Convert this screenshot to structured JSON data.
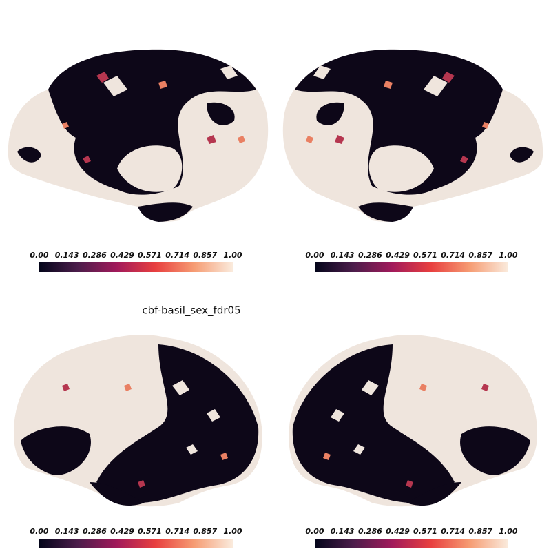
{
  "title": "cbf-basil_sex_fdr05",
  "colormap": [
    "#03051a",
    "#4c1d4b",
    "#a11a5b",
    "#e83f3f",
    "#f69c73",
    "#faebdd"
  ],
  "colorbars": [
    {
      "ticks": [
        {
          "value": 0,
          "label": "0.00"
        },
        0.143,
        0.286,
        0.429,
        0.571,
        0.714,
        0.857,
        {
          "value": 1,
          "label": "1.00"
        }
      ]
    },
    {
      "ticks": [
        {
          "value": 0,
          "label": "0.00"
        },
        0.143,
        0.286,
        0.429,
        0.571,
        0.714,
        0.857,
        {
          "value": 1,
          "label": "1.00"
        }
      ]
    },
    {
      "ticks": [
        {
          "value": 0,
          "label": "0.00"
        },
        0.143,
        0.286,
        0.429,
        0.571,
        0.714,
        0.857,
        {
          "value": 1,
          "label": "1.00"
        }
      ]
    },
    {
      "ticks": [
        {
          "value": 0,
          "label": "0.00"
        },
        0.143,
        0.286,
        0.429,
        0.571,
        0.714,
        0.857,
        {
          "value": 1,
          "label": "1.00"
        }
      ]
    }
  ]
}
